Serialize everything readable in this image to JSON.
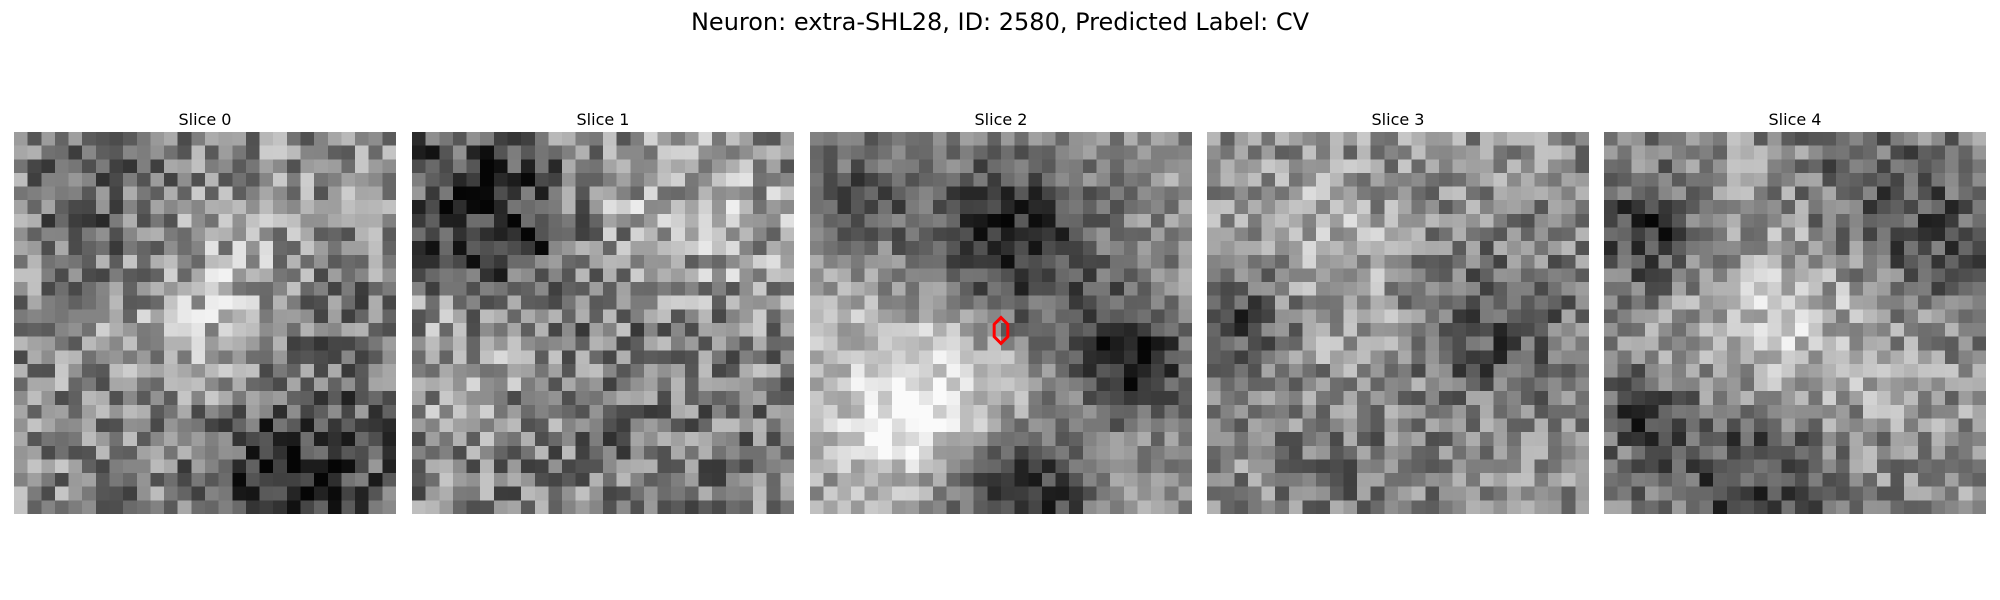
{
  "figure": {
    "title": "Neuron: extra-SHL28, ID: 2580, Predicted Label: CV"
  },
  "panels": [
    {
      "title": "Slice 0",
      "marker": false
    },
    {
      "title": "Slice 1",
      "marker": false
    },
    {
      "title": "Slice 2",
      "marker": true
    },
    {
      "title": "Slice 3",
      "marker": false
    },
    {
      "title": "Slice 4",
      "marker": false
    }
  ],
  "image": {
    "grid_size": 28,
    "colormap": "gray"
  },
  "marker": {
    "shape": "hexagon-outline",
    "color": "#ff0000"
  }
}
